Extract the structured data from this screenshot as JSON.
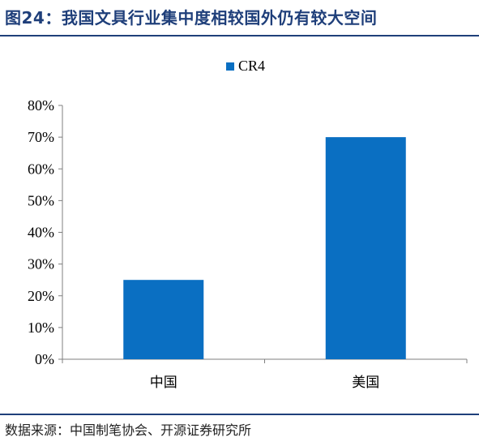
{
  "figure": {
    "title": "图24：我国文具行业集中度相较国外仍有较大空间",
    "source": "数据来源：中国制笔协会、开源证券研究所"
  },
  "chart_data": {
    "type": "bar",
    "categories": [
      "中国",
      "美国"
    ],
    "series": [
      {
        "name": "CR4",
        "values": [
          25,
          70
        ],
        "color": "#0a6fc2"
      }
    ],
    "ylim": [
      0,
      80
    ],
    "yticks": [
      0,
      10,
      20,
      30,
      40,
      50,
      60,
      70,
      80
    ],
    "y_tick_format": "percent",
    "legend_position": "top-center",
    "grid": false,
    "xlabel": "",
    "ylabel": ""
  }
}
